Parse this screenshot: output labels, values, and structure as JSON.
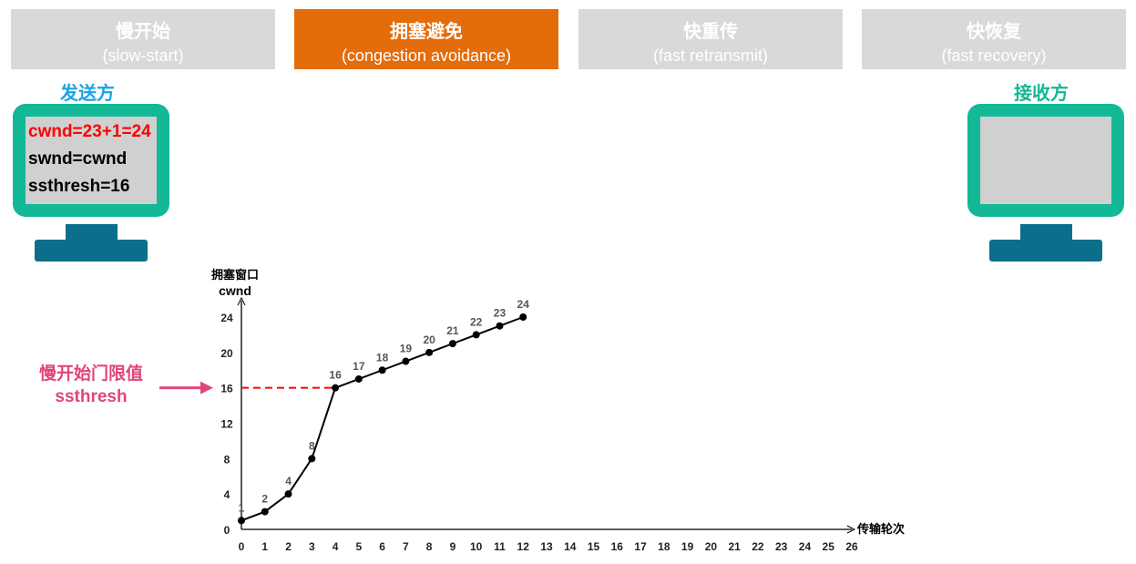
{
  "tabs": [
    {
      "title": "慢开始",
      "subtitle": "(slow-start)",
      "active": false
    },
    {
      "title": "拥塞避免",
      "subtitle": "(congestion avoidance)",
      "active": true
    },
    {
      "title": "快重传",
      "subtitle": "(fast retransmit)",
      "active": false
    },
    {
      "title": "快恢复",
      "subtitle": "(fast recovery)",
      "active": false
    }
  ],
  "sender": {
    "label": "发送方",
    "lines": [
      "cwnd=23+1=24",
      "swnd=cwnd",
      "ssthresh=16"
    ],
    "label_color": "#1aa3e8",
    "highlight_color": "#ff0000"
  },
  "receiver": {
    "label": "接收方",
    "label_color": "#13b896"
  },
  "annotation": {
    "line1": "慢开始门限值",
    "line2": "ssthresh",
    "color": "#e0457b"
  },
  "chart_data": {
    "type": "line",
    "ylabel_line1": "拥塞窗口",
    "ylabel_line2": "cwnd",
    "xlabel": "传输轮次",
    "x": [
      0,
      1,
      2,
      3,
      4,
      5,
      6,
      7,
      8,
      9,
      10,
      11,
      12
    ],
    "values": [
      1,
      2,
      4,
      8,
      16,
      17,
      18,
      19,
      20,
      21,
      22,
      23,
      24
    ],
    "xlim": [
      0,
      26
    ],
    "ylim": [
      0,
      24
    ],
    "xticks": [
      0,
      1,
      2,
      3,
      4,
      5,
      6,
      7,
      8,
      9,
      10,
      11,
      12,
      13,
      14,
      15,
      16,
      17,
      18,
      19,
      20,
      21,
      22,
      23,
      24,
      25,
      26
    ],
    "yticks": [
      0,
      4,
      8,
      12,
      16,
      20,
      24
    ],
    "threshold": 16,
    "threshold_color": "#ff0000",
    "grid": false
  }
}
